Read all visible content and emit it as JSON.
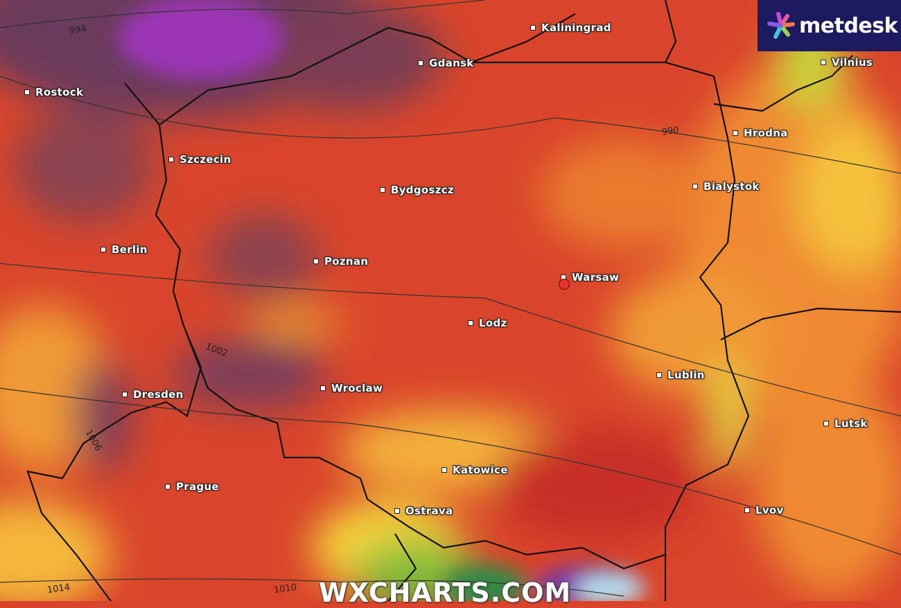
{
  "logo": {
    "text": "metdesk"
  },
  "watermark": "WXCHARTS.COM",
  "colors": {
    "base": "#d9452a",
    "deep_red": "#b8262a",
    "orange": "#ef7a2c",
    "yellow": "#f5d53a",
    "green": "#5aa838",
    "purple_low": "#6a3a72",
    "violet": "#8c2fb0",
    "light_blue": "#b6def0",
    "logo_bg": "#1b1a5e",
    "marker": "#e8322b"
  },
  "cities": [
    {
      "name": "Kaliningrad"
    },
    {
      "name": "Gdansk"
    },
    {
      "name": "Rostock"
    },
    {
      "name": "Hrodna"
    },
    {
      "name": "Szczecin"
    },
    {
      "name": "Bydgoszcz"
    },
    {
      "name": "Bialystok"
    },
    {
      "name": "Berlin"
    },
    {
      "name": "Poznan"
    },
    {
      "name": "Warsaw"
    },
    {
      "name": "Lodz"
    },
    {
      "name": "Lublin"
    },
    {
      "name": "Dresden"
    },
    {
      "name": "Wroclaw"
    },
    {
      "name": "Lutsk"
    },
    {
      "name": "Katowice"
    },
    {
      "name": "Prague"
    },
    {
      "name": "Lvov"
    },
    {
      "name": "Ostrava"
    },
    {
      "name": "Vilnius"
    }
  ],
  "isobars": [
    "994",
    "990",
    "1002",
    "1006",
    "1014",
    "1010"
  ],
  "selected_location_icon": "location-marker-icon"
}
